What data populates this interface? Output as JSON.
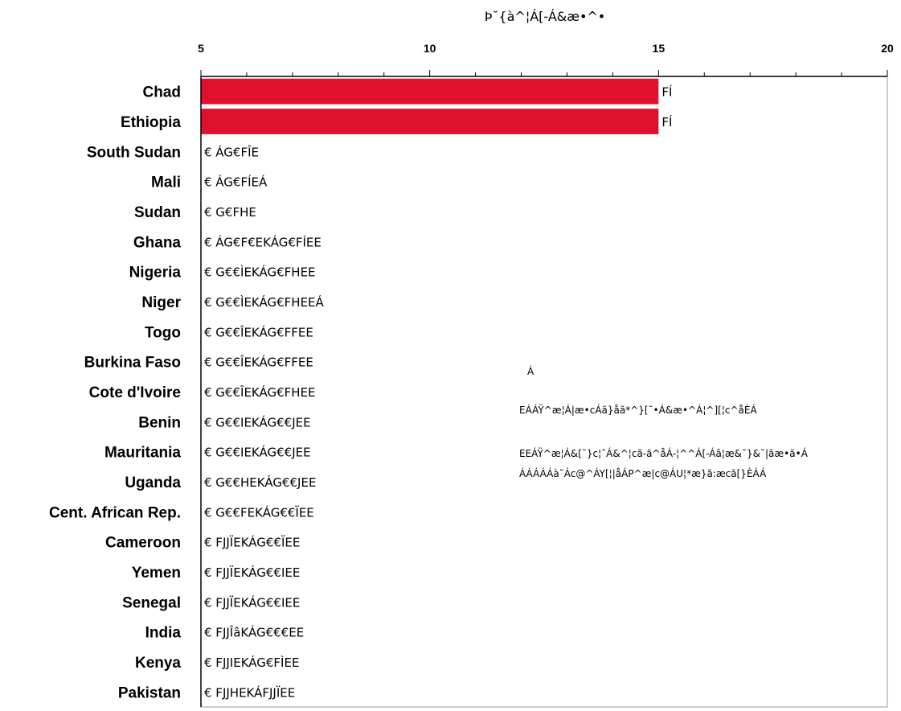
{
  "colors": {
    "bar": "#e0102f",
    "axis": "#000000",
    "plot_border": "#999999"
  },
  "note": {
    "lines": [
      "Á",
      "EÁÁŸ^æ¦Á|æ•cÁã}åã*^}[˘•Á&æ•^Á¦^][¦c^åÈÁ",
      "EEÁŸ^æ¦Á&[˘}c¦ˆÁ&^¦cã-ã^åÁ-¦^^Á[-Áâ¦æ&˘}&˘|ãæ•ã•Á",
      "ÁÁÁÁÁà˘Ác@^ÁY[¦|åÁP^æ|c@ÁU¦*æ}ã:æcã[}ÈÁÁ"
    ]
  },
  "chart_data": {
    "type": "bar",
    "orientation": "horizontal",
    "title": "",
    "xlabel": "Þ˘{à^¦Á[-Á&æ•^•",
    "ylabel": "",
    "xlim": [
      5,
      20
    ],
    "x_axis_position": "top",
    "xticks": [
      5,
      10,
      15,
      20
    ],
    "x_minor_step": 1,
    "grid": false,
    "categories": [
      "Chad",
      "Ethiopia",
      "South Sudan",
      "Mali",
      "Sudan",
      "Ghana",
      "Nigeria",
      "Niger",
      "Togo",
      "Burkina Faso",
      "Cote d'Ivoire",
      "Benin",
      "Mauritania",
      "Uganda",
      "Cent. African Rep.",
      "Cameroon",
      "Yemen",
      "Senegal",
      "India",
      "Kenya",
      "Pakistan"
    ],
    "values": [
      15,
      15,
      5,
      5,
      5,
      5,
      5,
      5,
      5,
      5,
      5,
      5,
      5,
      5,
      5,
      5,
      5,
      5,
      5,
      5,
      5
    ],
    "data_labels": [
      "FÍ",
      "FÍ",
      "€ ÁG€FÎE",
      "€ ÁG€FÍEÁ",
      "€  G€FHE",
      "€ ÁG€F€EKÁG€FÍEE",
      "€  G€€ÌEKÁG€FHEE",
      "€  G€€ÌEKÁG€FHEEÁ",
      "€  G€€ÎEKÁG€FFEE",
      "€  G€€ÎEKÁG€FFEE",
      "€  G€€ÎEKÁG€FHEE",
      "€ G€€IEKÁG€€JEE",
      "€  G€€IEKÁG€€JEE",
      "€  G€€HEKÁG€€JEE",
      "€  G€€FEKÁG€€ÏEE",
      "€ FJJÏEKÁG€€ÏEE",
      "€ FJJÏEKÁG€€IEE",
      "€ FJJÏEKÁG€€IEE",
      "€ FJJÎâKÁG€€€EE",
      "€ FJJIEKÁG€FÌEE",
      "€ FJJHEKÁFJJÏEE"
    ]
  }
}
